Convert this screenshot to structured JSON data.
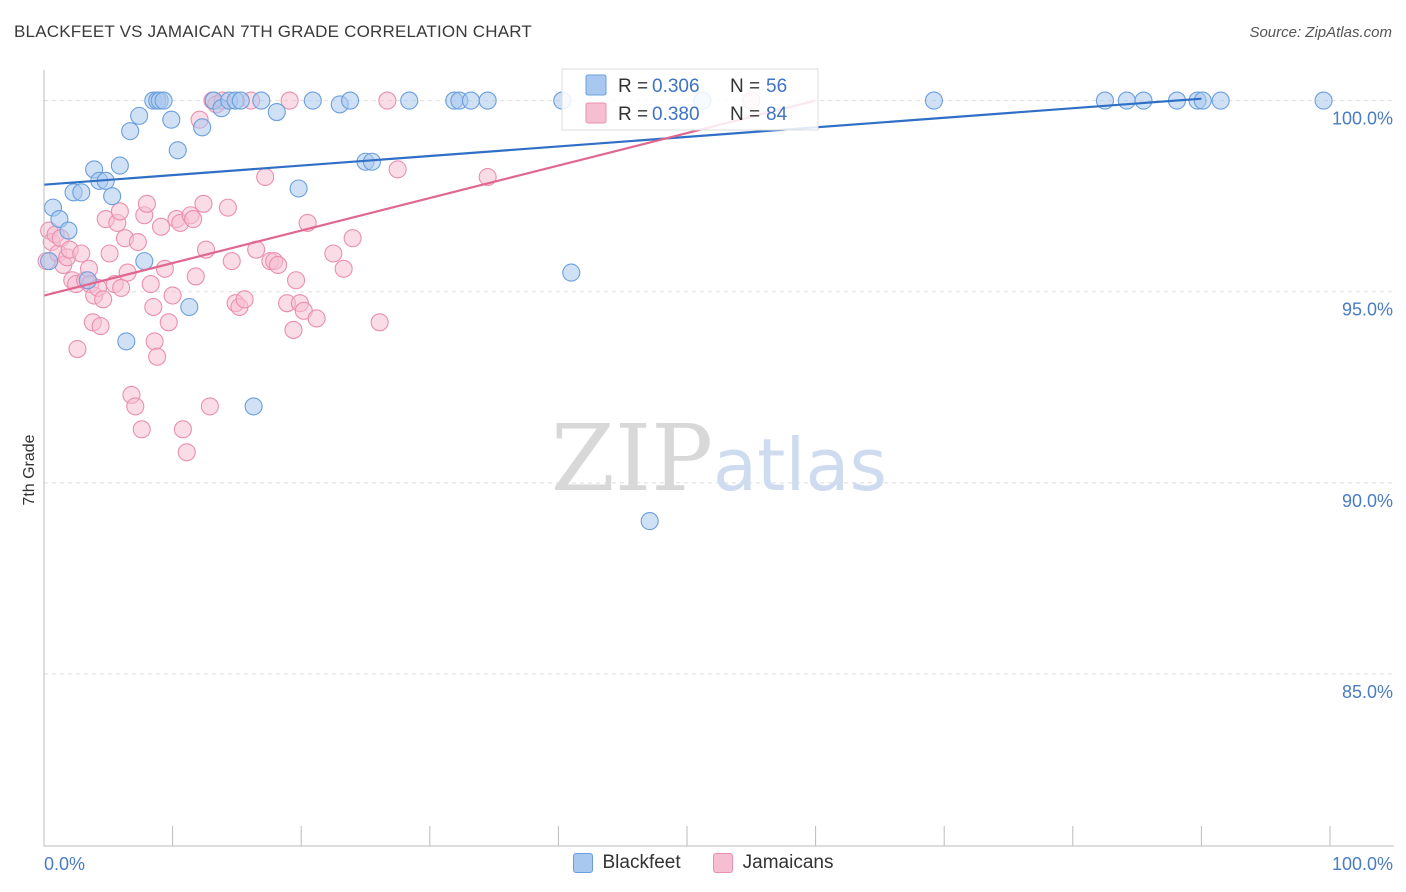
{
  "header": {
    "title": "BLACKFEET VS JAMAICAN 7TH GRADE CORRELATION CHART",
    "source": "Source: ZipAtlas.com"
  },
  "watermark": {
    "zip": "ZIP",
    "atlas": "atlas"
  },
  "colors": {
    "blue": "#6a9fdd",
    "blue_fill": "#a9c8ef",
    "blue_line": "#2f6fc6",
    "pink": "#ea8fae",
    "pink_fill": "#f6bfd1",
    "pink_line": "#e0678f",
    "grid": "#dddddd",
    "tick_text": "#4a7cc2"
  },
  "legend_top": {
    "rows": [
      {
        "r_label": "R = ",
        "r_value": "0.306",
        "n_label": "N = ",
        "n_value": "56"
      },
      {
        "r_label": "R = ",
        "r_value": "0.380",
        "n_label": "N = ",
        "n_value": "84"
      }
    ]
  },
  "chart_data": {
    "type": "scatter",
    "title": "BLACKFEET VS JAMAICAN 7TH GRADE CORRELATION CHART",
    "xlabel": "",
    "ylabel": "7th Grade",
    "xlim": [
      0,
      100
    ],
    "ylim": [
      80.5,
      100.8
    ],
    "x_ticks": [
      "0.0%",
      "100.0%"
    ],
    "y_ticks": [
      {
        "value": 100,
        "label": "100.0%"
      },
      {
        "value": 95,
        "label": "95.0%"
      },
      {
        "value": 90,
        "label": "90.0%"
      },
      {
        "value": 85,
        "label": "85.0%"
      }
    ],
    "grid": true,
    "legend_position": "bottom",
    "series": [
      {
        "name": "Blackfeet",
        "r": 0.306,
        "n": 56,
        "trend": [
          [
            0,
            97.8
          ],
          [
            90,
            100.05
          ]
        ],
        "points": [
          [
            0.4,
            95.8
          ],
          [
            0.7,
            97.2
          ],
          [
            1.2,
            96.9
          ],
          [
            1.9,
            96.6
          ],
          [
            2.3,
            97.6
          ],
          [
            2.9,
            97.6
          ],
          [
            3.4,
            95.3
          ],
          [
            3.9,
            98.2
          ],
          [
            4.3,
            97.9
          ],
          [
            4.8,
            97.9
          ],
          [
            5.3,
            97.5
          ],
          [
            5.9,
            98.3
          ],
          [
            6.4,
            93.7
          ],
          [
            6.7,
            99.2
          ],
          [
            7.4,
            99.6
          ],
          [
            7.8,
            95.8
          ],
          [
            8.5,
            100.0
          ],
          [
            8.8,
            100.0
          ],
          [
            9.0,
            100.0
          ],
          [
            9.3,
            100.0
          ],
          [
            9.9,
            99.5
          ],
          [
            10.4,
            98.7
          ],
          [
            11.3,
            94.6
          ],
          [
            12.3,
            99.3
          ],
          [
            13.2,
            100.0
          ],
          [
            13.8,
            99.8
          ],
          [
            14.4,
            100.0
          ],
          [
            14.9,
            100.0
          ],
          [
            15.3,
            100.0
          ],
          [
            16.3,
            92.0
          ],
          [
            16.9,
            100.0
          ],
          [
            18.1,
            99.7
          ],
          [
            19.8,
            97.7
          ],
          [
            20.9,
            100.0
          ],
          [
            23.0,
            99.9
          ],
          [
            23.8,
            100.0
          ],
          [
            25.0,
            98.4
          ],
          [
            25.5,
            98.4
          ],
          [
            28.4,
            100.0
          ],
          [
            31.9,
            100.0
          ],
          [
            32.3,
            100.0
          ],
          [
            33.2,
            100.0
          ],
          [
            34.5,
            100.0
          ],
          [
            40.3,
            100.0
          ],
          [
            41.0,
            95.5
          ],
          [
            47.1,
            89.0
          ],
          [
            51.2,
            100.0
          ],
          [
            69.2,
            100.0
          ],
          [
            82.5,
            100.0
          ],
          [
            84.2,
            100.0
          ],
          [
            85.5,
            100.0
          ],
          [
            88.1,
            100.0
          ],
          [
            89.7,
            100.0
          ],
          [
            90.1,
            100.0
          ],
          [
            91.5,
            100.0
          ],
          [
            99.5,
            100.0
          ]
        ]
      },
      {
        "name": "Jamaicans",
        "r": 0.38,
        "n": 84,
        "trend": [
          [
            0,
            94.9
          ],
          [
            60,
            100.0
          ]
        ],
        "points": [
          [
            0.2,
            95.8
          ],
          [
            0.4,
            96.6
          ],
          [
            0.6,
            96.3
          ],
          [
            0.9,
            96.5
          ],
          [
            1.1,
            96.0
          ],
          [
            1.3,
            96.4
          ],
          [
            1.5,
            95.7
          ],
          [
            1.8,
            95.9
          ],
          [
            2.0,
            96.1
          ],
          [
            2.2,
            95.3
          ],
          [
            2.5,
            95.2
          ],
          [
            2.6,
            93.5
          ],
          [
            2.9,
            96.0
          ],
          [
            3.2,
            95.3
          ],
          [
            3.5,
            95.6
          ],
          [
            3.6,
            95.2
          ],
          [
            3.8,
            94.2
          ],
          [
            3.9,
            94.9
          ],
          [
            4.2,
            95.1
          ],
          [
            4.4,
            94.1
          ],
          [
            4.6,
            94.8
          ],
          [
            4.8,
            96.9
          ],
          [
            5.1,
            96.0
          ],
          [
            5.5,
            95.2
          ],
          [
            5.7,
            96.8
          ],
          [
            5.9,
            97.1
          ],
          [
            6.0,
            95.1
          ],
          [
            6.3,
            96.4
          ],
          [
            6.5,
            95.5
          ],
          [
            6.8,
            92.3
          ],
          [
            7.1,
            92.0
          ],
          [
            7.3,
            96.3
          ],
          [
            7.6,
            91.4
          ],
          [
            7.8,
            97.0
          ],
          [
            8.0,
            97.3
          ],
          [
            8.3,
            95.2
          ],
          [
            8.5,
            94.6
          ],
          [
            8.6,
            93.7
          ],
          [
            8.8,
            93.3
          ],
          [
            9.1,
            96.7
          ],
          [
            9.4,
            95.6
          ],
          [
            9.7,
            94.2
          ],
          [
            10.0,
            94.9
          ],
          [
            10.3,
            96.9
          ],
          [
            10.6,
            96.8
          ],
          [
            10.8,
            91.4
          ],
          [
            11.1,
            90.8
          ],
          [
            11.4,
            97.0
          ],
          [
            11.6,
            96.9
          ],
          [
            11.8,
            95.4
          ],
          [
            12.1,
            99.5
          ],
          [
            12.4,
            97.3
          ],
          [
            12.6,
            96.1
          ],
          [
            12.9,
            92.0
          ],
          [
            13.1,
            100.0
          ],
          [
            13.4,
            99.9
          ],
          [
            13.9,
            100.0
          ],
          [
            14.3,
            97.2
          ],
          [
            14.6,
            95.8
          ],
          [
            14.9,
            94.7
          ],
          [
            15.2,
            94.6
          ],
          [
            15.6,
            94.8
          ],
          [
            16.1,
            100.0
          ],
          [
            16.5,
            96.1
          ],
          [
            17.2,
            98.0
          ],
          [
            17.6,
            95.8
          ],
          [
            17.9,
            95.8
          ],
          [
            18.2,
            95.7
          ],
          [
            18.9,
            94.7
          ],
          [
            19.1,
            100.0
          ],
          [
            19.4,
            94.0
          ],
          [
            19.6,
            95.3
          ],
          [
            19.9,
            94.7
          ],
          [
            20.2,
            94.5
          ],
          [
            20.5,
            96.8
          ],
          [
            21.2,
            94.3
          ],
          [
            22.5,
            96.0
          ],
          [
            23.3,
            95.6
          ],
          [
            24.0,
            96.4
          ],
          [
            26.1,
            94.2
          ],
          [
            26.7,
            100.0
          ],
          [
            27.5,
            98.2
          ],
          [
            34.5,
            98.0
          ],
          [
            55.0,
            100.0
          ]
        ]
      }
    ]
  }
}
